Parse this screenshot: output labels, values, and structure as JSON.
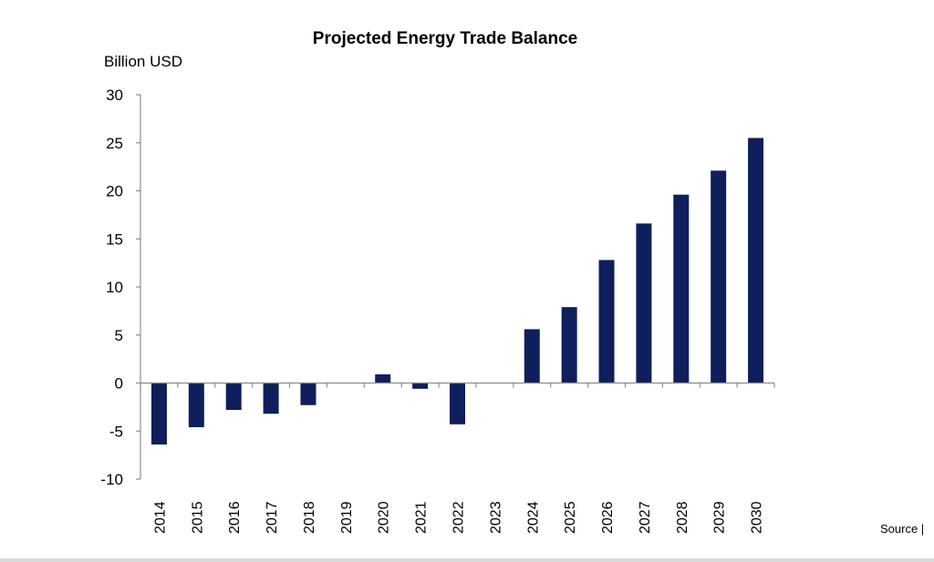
{
  "chart_data": {
    "type": "bar",
    "title": "Projected Energy Trade Balance",
    "ylabel": "Billion USD",
    "xlabel": "",
    "categories": [
      "2014",
      "2015",
      "2016",
      "2017",
      "2018",
      "2019",
      "2020",
      "2021",
      "2022",
      "2023",
      "2024",
      "2025",
      "2026",
      "2027",
      "2028",
      "2029",
      "2030"
    ],
    "values": [
      -6.4,
      -4.6,
      -2.8,
      -3.2,
      -2.3,
      0,
      0.9,
      -0.6,
      -4.3,
      0,
      5.6,
      7.9,
      12.8,
      16.6,
      19.6,
      22.1,
      25.5
    ],
    "ylim": [
      -10,
      30
    ],
    "yticks": [
      30,
      25,
      20,
      15,
      10,
      5,
      0,
      -5,
      -10
    ],
    "bar_color": "#0f1f5c",
    "grid": false,
    "legend": "none"
  },
  "footer": {
    "source_label": "Source |"
  }
}
